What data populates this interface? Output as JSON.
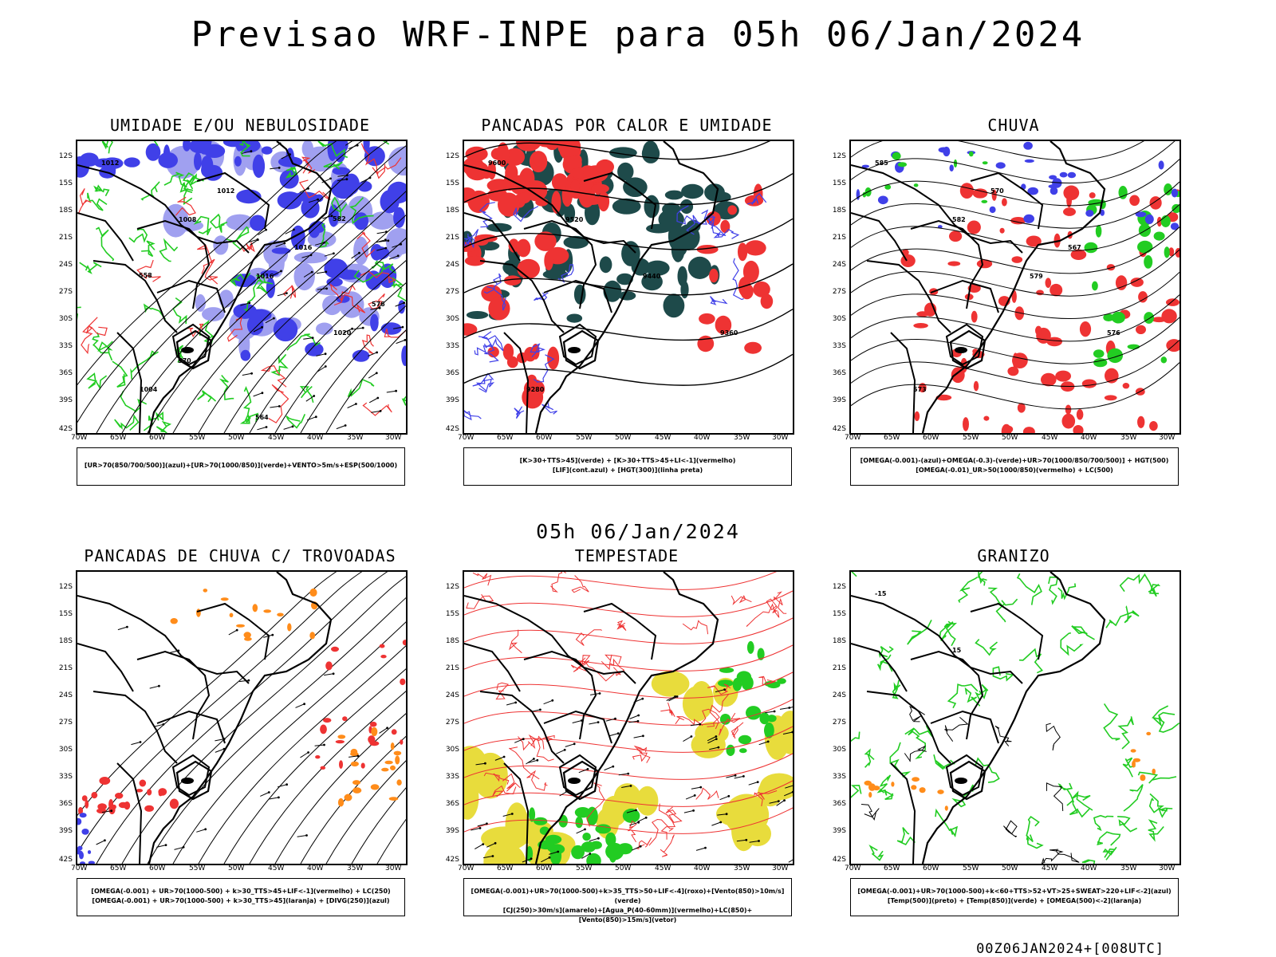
{
  "title": "Previsao WRF-INPE  para 05h 06/Jan/2024",
  "mid_title": "05h 06/Jan/2024",
  "footer": "00Z06JAN2024+[008UTC]",
  "lat_labels": [
    "12S",
    "15S",
    "18S",
    "21S",
    "24S",
    "27S",
    "30S",
    "33S",
    "36S",
    "39S",
    "42S"
  ],
  "lon_labels": [
    "70W",
    "65W",
    "60W",
    "55W",
    "50W",
    "45W",
    "40W",
    "35W",
    "30W"
  ],
  "panels": [
    {
      "title": "UMIDADE E/OU NEBULOSIDADE",
      "legend": [
        "[UR>70(850/700/500)](azul)+[UR>70(1000/850)](verde)+VENTO>5m/s+ESP(500/1000)"
      ],
      "contour_labels": [
        "1012",
        "1008",
        "1016",
        "1020",
        "1004",
        "1012",
        "1016",
        "576",
        "570",
        "564",
        "582",
        "558"
      ]
    },
    {
      "title": "PANCADAS POR CALOR E UMIDADE",
      "legend": [
        "[K>30+TTS>45](verde)  +  [K>30+TTS>45+LI<-1](vermelho)",
        "[LIF](cont.azul)  +  [HGT(300)](linha preta)"
      ],
      "contour_labels": [
        "9600",
        "9520",
        "9440",
        "9360",
        "9280"
      ]
    },
    {
      "title": "CHUVA",
      "legend": [
        "[OMEGA(-0.001)-(azul)+OMEGA(-0.3)-(verde)+UR>70(1000/850/700/500)] + HGT(500)",
        "[OMEGA(-0.01)_UR>50(1000/850)(vermelho) + LC(500)"
      ],
      "contour_labels": [
        "585",
        "582",
        "579",
        "576",
        "573",
        "570",
        "567"
      ]
    },
    {
      "title": "PANCADAS DE CHUVA C/ TROVOADAS",
      "legend": [
        "[OMEGA(-0.001) + UR>70(1000-500) + k>30_TTS>45+LIF<-1](vermelho) + LC(250)",
        "[OMEGA(-0.001) + UR>70(1000-500) + k>30_TTS>45](laranja) + [DIVG(250)](azul)"
      ],
      "contour_labels": []
    },
    {
      "title": "TEMPESTADE",
      "legend": [
        "[OMEGA(-0.001)+UR>70(1000-500)+k>35_TTS>50+LIF<-4](roxo)+[Vento(850)>10m/s](verde)",
        "[CJ(250)>30m/s](amarelo)+[Agua_P(40-60mm)](vermelho)+LC(850)+[Vento(850)>15m/s](vetor)"
      ],
      "contour_labels": []
    },
    {
      "title": "GRANIZO",
      "legend": [
        "[OMEGA(-0.001)+UR>70(1000-500)+k<60+TTS>52+VT>25+SWEAT>220+LIF<-2](azul)",
        "[Temp(500)](preto) + [Temp(850)](verde) + [OMEGA(500)<-2](laranja)"
      ],
      "contour_labels": [
        "-15",
        "15"
      ]
    }
  ],
  "colors": {
    "blue": "#4040e8",
    "lightblue": "#a0a0f0",
    "green": "#22cc22",
    "red": "#ee3333",
    "darkteal": "#1e4a4a",
    "orange": "#ff8c1a",
    "yellow": "#e8dc3c"
  }
}
